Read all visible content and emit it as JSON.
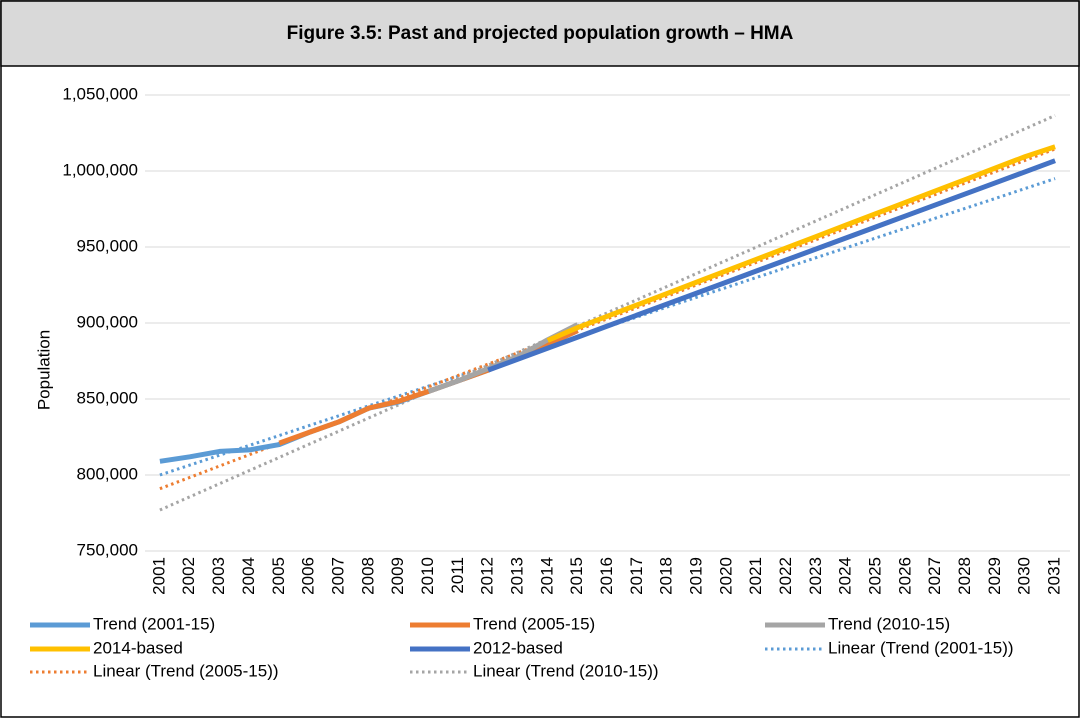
{
  "chart_data": {
    "type": "line",
    "title": "Figure 3.5: Past and projected population growth – HMA",
    "y_label": "Population",
    "categories": [
      "2001",
      "2002",
      "2003",
      "2004",
      "2005",
      "2006",
      "2007",
      "2008",
      "2009",
      "2010",
      "2011",
      "2012",
      "2013",
      "2014",
      "2015",
      "2016",
      "2017",
      "2018",
      "2019",
      "2020",
      "2021",
      "2022",
      "2023",
      "2024",
      "2025",
      "2026",
      "2027",
      "2028",
      "2029",
      "2030",
      "2031"
    ],
    "ylim": [
      750000,
      1050000
    ],
    "yticks": [
      {
        "value": 750000,
        "label": "750,000"
      },
      {
        "value": 800000,
        "label": "800,000"
      },
      {
        "value": 850000,
        "label": "850,000"
      },
      {
        "value": 900000,
        "label": "900,000"
      },
      {
        "value": 950000,
        "label": "950,000"
      },
      {
        "value": 1000000,
        "label": "1,000,000"
      },
      {
        "value": 1050000,
        "label": "1,050,000"
      }
    ],
    "grid": true,
    "legend": "bottom",
    "series": [
      {
        "name": "Trend (2001-15)",
        "color": "#5b9bd5",
        "dashed": false,
        "values": [
          809000,
          812000,
          815500,
          816500,
          820000,
          828000,
          835000,
          844000,
          848000,
          855000,
          862000,
          869000,
          877000,
          886000,
          895000,
          null,
          null,
          null,
          null,
          null,
          null,
          null,
          null,
          null,
          null,
          null,
          null,
          null,
          null,
          null,
          null
        ]
      },
      {
        "name": "Trend (2005-15)",
        "color": "#ed7d31",
        "dashed": false,
        "values": [
          null,
          null,
          null,
          null,
          821000,
          828000,
          835000,
          844000,
          848500,
          855000,
          862000,
          869000,
          877000,
          886000,
          895000,
          null,
          null,
          null,
          null,
          null,
          null,
          null,
          null,
          null,
          null,
          null,
          null,
          null,
          null,
          null,
          null
        ]
      },
      {
        "name": "Trend (2010-15)",
        "color": "#a5a5a5",
        "dashed": false,
        "values": [
          null,
          null,
          null,
          null,
          null,
          null,
          null,
          null,
          null,
          855000,
          862000,
          870000,
          878000,
          889000,
          899000,
          null,
          null,
          null,
          null,
          null,
          null,
          null,
          null,
          null,
          null,
          null,
          null,
          null,
          null,
          null,
          null
        ]
      },
      {
        "name": "2014-based",
        "color": "#ffc000",
        "dashed": false,
        "values": [
          null,
          null,
          null,
          null,
          null,
          null,
          null,
          null,
          null,
          null,
          null,
          null,
          null,
          888500,
          897000,
          904500,
          912000,
          919500,
          927000,
          934500,
          942000,
          949500,
          957000,
          964500,
          972000,
          979500,
          987000,
          994500,
          1002000,
          1009500,
          1016000
        ]
      },
      {
        "name": "2012-based",
        "color": "#4472c4",
        "dashed": false,
        "values": [
          null,
          null,
          null,
          null,
          null,
          null,
          null,
          null,
          null,
          null,
          null,
          869000,
          876250,
          883500,
          890750,
          898000,
          905250,
          912500,
          919750,
          927000,
          934250,
          941500,
          948750,
          956000,
          963250,
          970500,
          977750,
          985000,
          992250,
          999500,
          1006750
        ]
      },
      {
        "name": "Linear (Trend (2001-15))",
        "color": "#5b9bd5",
        "dashed": true,
        "values": [
          800000,
          806500,
          813000,
          819500,
          826000,
          832500,
          839000,
          845500,
          852000,
          858500,
          865000,
          871500,
          878000,
          884500,
          891000,
          897500,
          904000,
          910500,
          917000,
          923500,
          930000,
          936500,
          943000,
          949500,
          956000,
          962500,
          969000,
          975500,
          982000,
          988500,
          995000
        ]
      },
      {
        "name": "Linear (Trend (2005-15))",
        "color": "#ed7d31",
        "dashed": true,
        "values": [
          791000,
          798450,
          805900,
          813350,
          820800,
          828250,
          835700,
          843150,
          850600,
          858050,
          865500,
          872950,
          880400,
          887850,
          895300,
          902750,
          910200,
          917650,
          925100,
          932550,
          940000,
          947450,
          954900,
          962350,
          969800,
          977250,
          984700,
          992150,
          999600,
          1007050,
          1014500
        ]
      },
      {
        "name": "Linear (Trend (2010-15))",
        "color": "#a5a5a5",
        "dashed": true,
        "values": [
          777000,
          785650,
          794300,
          802950,
          811600,
          820250,
          828900,
          837550,
          846200,
          854850,
          863500,
          872150,
          880800,
          889450,
          898100,
          906750,
          915400,
          924050,
          932700,
          941350,
          950000,
          958650,
          967300,
          975950,
          984600,
          993250,
          1001900,
          1010550,
          1019200,
          1027850,
          1036500
        ]
      }
    ]
  }
}
